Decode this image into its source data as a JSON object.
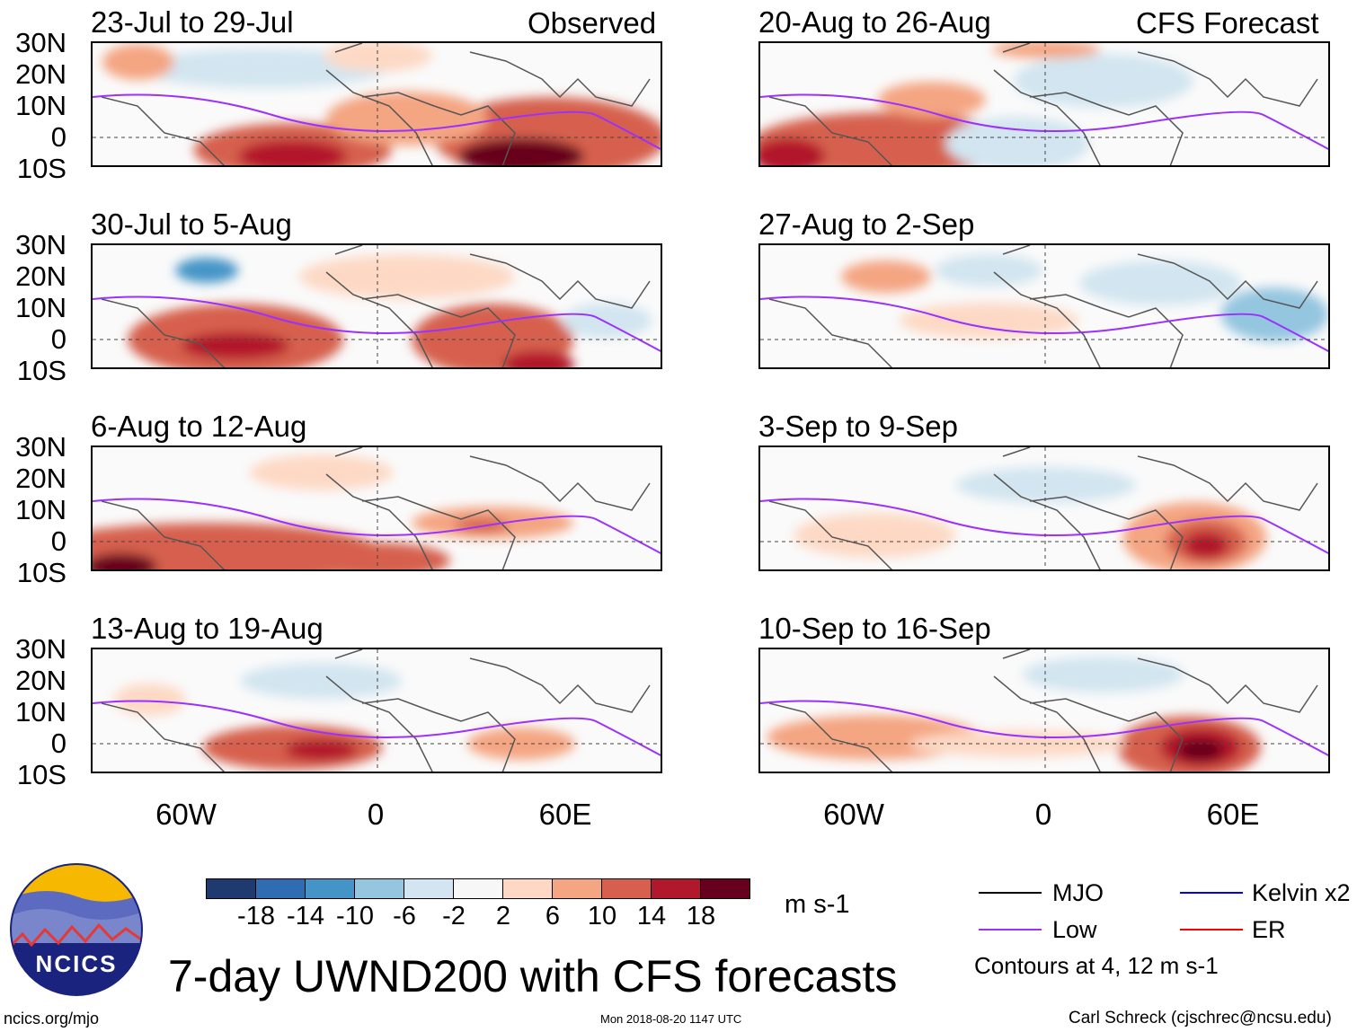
{
  "left_header": "Observed",
  "right_header": "CFS Forecast",
  "panels_left": [
    "23-Jul to 29-Jul",
    "30-Jul to 5-Aug",
    "6-Aug to 12-Aug",
    "13-Aug to 19-Aug"
  ],
  "panels_right": [
    "20-Aug to 26-Aug",
    "27-Aug to 2-Sep",
    "3-Sep to 9-Sep",
    "10-Sep to 16-Sep"
  ],
  "lat_labels": [
    "30N",
    "20N",
    "10N",
    "0",
    "10S"
  ],
  "lon_labels": [
    "60W",
    "0",
    "60E"
  ],
  "colorbar": {
    "colors": [
      "#1f3a6e",
      "#2f6db3",
      "#4494c7",
      "#94c6e0",
      "#d2e5f0",
      "#f7f7f7",
      "#fdd9c5",
      "#f4a582",
      "#d6604d",
      "#b2182b",
      "#67001f"
    ],
    "ticks": [
      "-18",
      "-14",
      "-10",
      "-6",
      "-2",
      "2",
      "6",
      "10",
      "14",
      "18"
    ],
    "units": "m s-1"
  },
  "legend": {
    "items": [
      {
        "label": "MJO",
        "color": "#000000"
      },
      {
        "label": "Kelvin x2",
        "color": "#0000ff"
      },
      {
        "label": "Low",
        "color": "#9b30ff"
      },
      {
        "label": "ER",
        "color": "#ff0000"
      }
    ],
    "note": "Contours at 4, 12 m s-1"
  },
  "logo_text": "NCICS",
  "title": "7-day UWND200 with CFS forecasts",
  "footer": {
    "url": "ncics.org/mjo",
    "timestamp": "Mon 2018-08-20 1147 UTC",
    "credit": "Carl Schreck (cjschrec@ncsu.edu)"
  }
}
